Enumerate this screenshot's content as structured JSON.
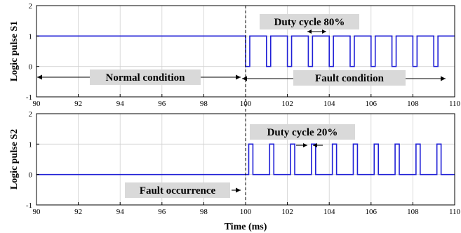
{
  "chart_data": [
    {
      "type": "line",
      "ylabel": "Logic pulse S1",
      "xlabel": "",
      "xlim": [
        90,
        110
      ],
      "ylim": [
        -1,
        2
      ],
      "xticks": [
        "90",
        "92",
        "94",
        "96",
        "98",
        "100",
        "102",
        "104",
        "106",
        "108",
        "110"
      ],
      "yticks": [
        "-1",
        "0",
        "1",
        "2"
      ],
      "grid": true,
      "series": [
        {
          "color": "#1f1fd6",
          "pre_value": 1,
          "switch_time_ms": 100,
          "period_ms": 1,
          "duty_cycle": 0.8,
          "pulse_low": 0,
          "pulse_high": 1
        }
      ],
      "annotations": {
        "duty": "Duty cycle 80%",
        "left_region": "Normal condition",
        "right_region": "Fault condition"
      }
    },
    {
      "type": "line",
      "ylabel": "Logic pulse S2",
      "xlabel": "Time (ms)",
      "xlim": [
        90,
        110
      ],
      "ylim": [
        -1,
        2
      ],
      "xticks": [
        "90",
        "92",
        "94",
        "96",
        "98",
        "100",
        "102",
        "104",
        "106",
        "108",
        "110"
      ],
      "yticks": [
        "-1",
        "0",
        "1",
        "2"
      ],
      "grid": true,
      "series": [
        {
          "color": "#1f1fd6",
          "pre_value": 0,
          "switch_time_ms": 100,
          "period_ms": 1,
          "duty_cycle": 0.2,
          "pulse_low": 0,
          "pulse_high": 1
        }
      ],
      "annotations": {
        "duty": "Duty cycle 20%",
        "event": "Fault occurrence"
      }
    }
  ]
}
